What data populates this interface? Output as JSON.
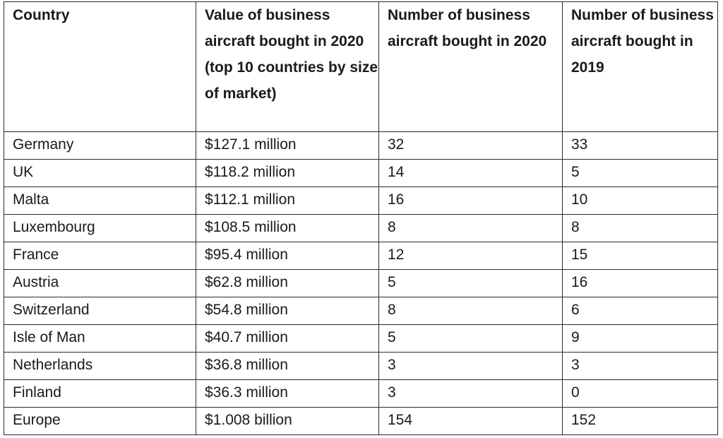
{
  "table": {
    "headers": [
      "Country",
      "Value of business aircraft bought in 2020 (top 10 countries by size of market)",
      "Number of business aircraft bought in 2020",
      "Number of business aircraft bought in 2019"
    ],
    "rows": [
      [
        "Germany",
        "$127.1 million",
        "32",
        "33"
      ],
      [
        "UK",
        "$118.2 million",
        "14",
        "5"
      ],
      [
        "Malta",
        "$112.1 million",
        "16",
        "10"
      ],
      [
        "Luxembourg",
        "$108.5 million",
        "8",
        "8"
      ],
      [
        "France",
        "$95.4 million",
        "12",
        "15"
      ],
      [
        "Austria",
        "$62.8 million",
        "5",
        "16"
      ],
      [
        "Switzerland",
        "$54.8 million",
        "8",
        "6"
      ],
      [
        "Isle of Man",
        "$40.7 million",
        "5",
        "9"
      ],
      [
        "Netherlands",
        "$36.8 million",
        "3",
        "3"
      ],
      [
        "Finland",
        "$36.3 million",
        "3",
        "0"
      ],
      [
        "Europe",
        "$1.008 billion",
        "154",
        "152"
      ]
    ]
  }
}
